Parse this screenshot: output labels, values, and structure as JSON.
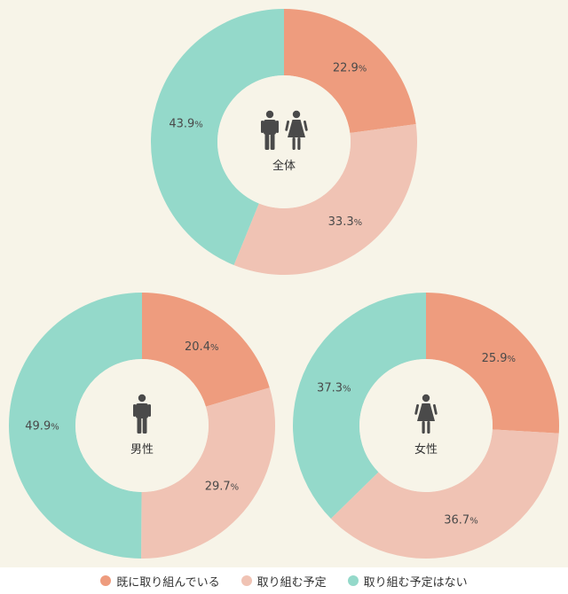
{
  "chart_data": {
    "type": "pie",
    "subtype": "donut",
    "series_names": [
      "既に取り組んでいる",
      "取り組む予定",
      "取り組む予定はない"
    ],
    "colors": [
      "#ee9c7e",
      "#f0c3b4",
      "#94d9ca"
    ],
    "unit": "%",
    "charts": [
      {
        "id": "total",
        "label": "全体",
        "icon": "male-female-icon",
        "values": [
          22.9,
          33.3,
          43.9
        ]
      },
      {
        "id": "male",
        "label": "男性",
        "icon": "male-icon",
        "values": [
          20.4,
          29.7,
          49.9
        ]
      },
      {
        "id": "female",
        "label": "女性",
        "icon": "female-icon",
        "values": [
          25.9,
          36.7,
          37.3
        ]
      }
    ]
  },
  "legend": {
    "items": [
      {
        "label": "既に取り組んでいる",
        "color": "#ee9c7e"
      },
      {
        "label": "取り組む予定",
        "color": "#f0c3b4"
      },
      {
        "label": "取り組む予定はない",
        "color": "#94d9ca"
      }
    ]
  }
}
